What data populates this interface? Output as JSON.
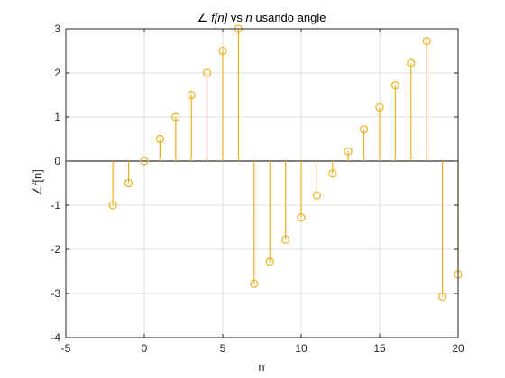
{
  "chart_data": {
    "type": "stem",
    "title": {
      "angle_symbol": "∠",
      "func": "f[n]",
      "vs": " vs ",
      "var": "n",
      "rest": " usando angle"
    },
    "xlabel": "n",
    "ylabel": "∠f[n]",
    "xlim": [
      -5,
      20
    ],
    "ylim": [
      -4,
      3
    ],
    "xticks": [
      -5,
      0,
      5,
      10,
      15,
      20
    ],
    "yticks": [
      -4,
      -3,
      -2,
      -1,
      0,
      1,
      2,
      3
    ],
    "grid": true,
    "color": "#EDB120",
    "x": [
      -2,
      -1,
      0,
      1,
      2,
      3,
      4,
      5,
      6,
      7,
      8,
      9,
      10,
      11,
      12,
      13,
      14,
      15,
      16,
      17,
      18,
      19,
      20
    ],
    "y": [
      -1.0,
      -0.5,
      0.0,
      0.5,
      1.0,
      1.5,
      2.0,
      2.5,
      3.0,
      -2.78,
      -2.28,
      -1.78,
      -1.28,
      -0.78,
      -0.28,
      0.22,
      0.72,
      1.22,
      1.72,
      2.22,
      2.72,
      -3.07,
      -2.57
    ]
  }
}
